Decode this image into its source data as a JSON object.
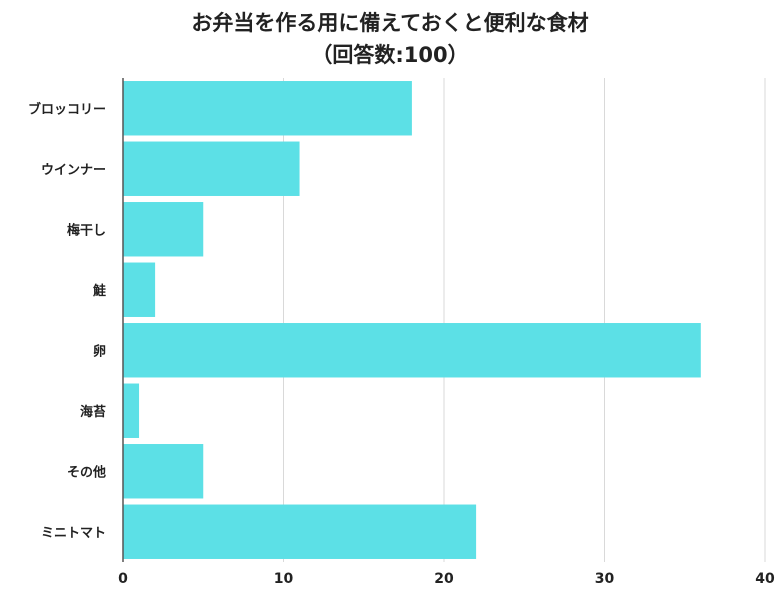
{
  "chart_data": {
    "type": "bar",
    "orientation": "horizontal",
    "title": "お弁当を作る用に備えておくと便利な食材",
    "subtitle": "（回答数:100）",
    "categories": [
      "ブロッコリー",
      "ウインナー",
      "梅干し",
      "鮭",
      "卵",
      "海苔",
      "その他",
      "ミニトマト"
    ],
    "values": [
      18,
      11,
      5,
      2,
      36,
      1,
      5,
      22
    ],
    "xlim": [
      0,
      40
    ],
    "xticks": [
      0,
      10,
      20,
      30,
      40
    ],
    "grid": true,
    "bar_color": "#5ce0e6"
  }
}
